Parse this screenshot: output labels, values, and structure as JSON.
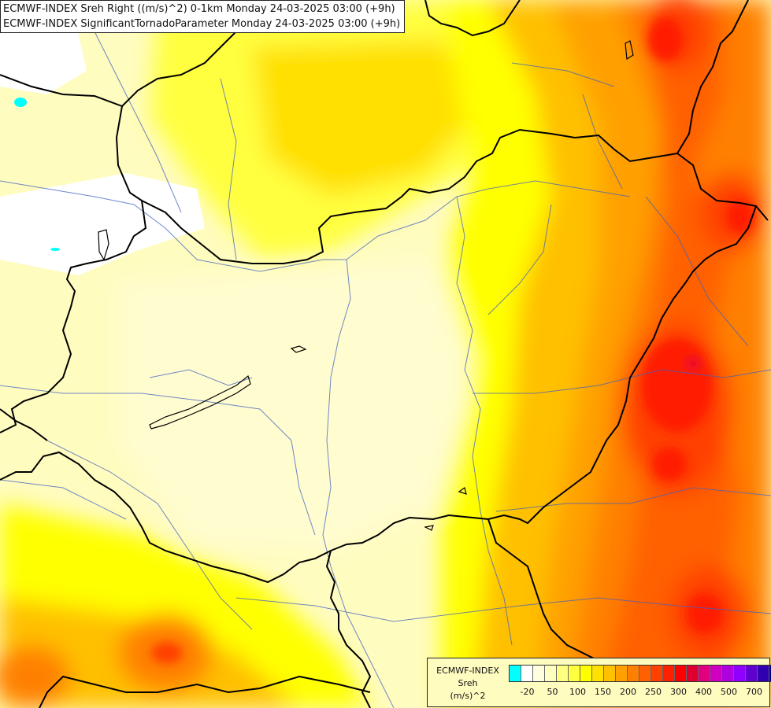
{
  "titles": {
    "line1": "ECMWF-INDEX Sreh Right ((m/s)^2) 0-1km Monday 24-03-2025 03:00 (+9h)",
    "line2": "ECMWF-INDEX SignificantTornadoParameter Monday 24-03-2025 03:00 (+9h)"
  },
  "legend": {
    "model": "ECMWF-INDEX",
    "variable": "Sreh",
    "unit": "(m/s)^2",
    "colors": [
      "#00ffff",
      "#ffffff",
      "#ffffe0",
      "#ffffc0",
      "#ffff80",
      "#ffff40",
      "#ffff00",
      "#ffe000",
      "#ffc000",
      "#ffa000",
      "#ff8000",
      "#ff6000",
      "#ff4000",
      "#ff2000",
      "#ff0000",
      "#e00030",
      "#e00080",
      "#d000c0",
      "#b000e0",
      "#9000ff",
      "#6000d0",
      "#3000b0",
      "#000080"
    ],
    "ticks": [
      {
        "label": "-20",
        "i": 1
      },
      {
        "label": "50",
        "i": 3
      },
      {
        "label": "100",
        "i": 5
      },
      {
        "label": "150",
        "i": 7
      },
      {
        "label": "200",
        "i": 9
      },
      {
        "label": "250",
        "i": 11
      },
      {
        "label": "300",
        "i": 13
      },
      {
        "label": "400",
        "i": 15
      },
      {
        "label": "500",
        "i": 17
      },
      {
        "label": "700",
        "i": 19
      }
    ]
  }
}
